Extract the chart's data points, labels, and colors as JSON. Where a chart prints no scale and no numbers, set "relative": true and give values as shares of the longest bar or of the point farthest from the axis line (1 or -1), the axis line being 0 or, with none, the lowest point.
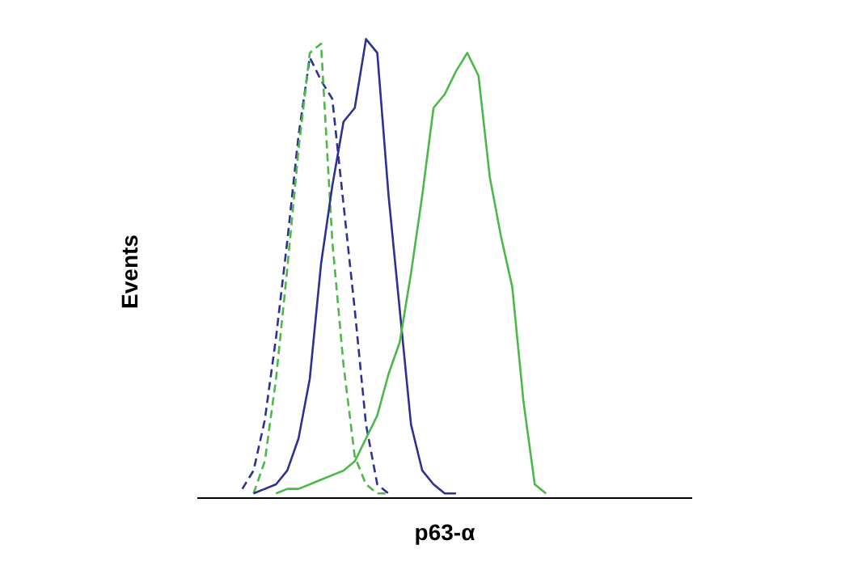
{
  "chart_data": {
    "type": "line",
    "xlabel": "p63-α",
    "ylabel": "Events",
    "relative": true,
    "marker": "none",
    "categories": [
      null,
      null,
      null,
      null,
      null,
      null,
      null,
      null,
      null,
      null,
      null,
      null,
      null,
      null,
      null,
      null,
      null,
      null,
      null,
      null,
      null,
      null,
      null,
      null,
      null,
      null,
      null,
      null,
      null,
      null,
      null,
      null,
      null,
      null,
      null,
      null,
      null,
      null,
      null,
      null,
      null,
      null,
      null,
      null,
      null
    ],
    "series": [
      {
        "color": "#2e3192",
        "line_style": "dashed",
        "values": [
          null,
          null,
          null,
          null,
          0.02,
          0.06,
          0.17,
          0.35,
          0.56,
          0.79,
          0.96,
          0.91,
          0.87,
          0.64,
          0.41,
          0.16,
          0.03,
          0.01,
          null,
          null,
          null,
          null,
          null,
          null,
          null,
          null,
          null,
          null,
          null,
          null,
          null,
          null,
          null,
          null,
          null,
          null,
          null,
          null,
          null,
          null,
          null,
          null,
          null,
          null,
          null
        ]
      },
      {
        "color": "#4cb848",
        "line_style": "dashed",
        "values": [
          null,
          null,
          null,
          null,
          null,
          0.01,
          0.08,
          0.26,
          0.5,
          0.76,
          0.97,
          0.99,
          0.56,
          0.29,
          0.09,
          0.03,
          0.01,
          0.01,
          null,
          null,
          null,
          null,
          null,
          null,
          null,
          null,
          null,
          null,
          null,
          null,
          null,
          null,
          null,
          null,
          null,
          null,
          null,
          null,
          null,
          null,
          null,
          null,
          null,
          null,
          null
        ]
      },
      {
        "color": "#2e3192",
        "line_style": "solid",
        "values": [
          null,
          null,
          null,
          null,
          null,
          0.01,
          0.02,
          0.03,
          0.06,
          0.13,
          0.26,
          0.51,
          0.68,
          0.82,
          0.85,
          1,
          0.97,
          0.66,
          0.41,
          0.16,
          0.06,
          0.03,
          0.01,
          0.01,
          null,
          null,
          null,
          null,
          null,
          null,
          null,
          null,
          null,
          null,
          null,
          null,
          null,
          null,
          null,
          null,
          null,
          null,
          null,
          null,
          null
        ]
      },
      {
        "color": "#4cb848",
        "line_style": "solid",
        "values": [
          null,
          null,
          null,
          null,
          null,
          null,
          null,
          0.01,
          0.02,
          0.02,
          0.03,
          0.04,
          0.05,
          0.06,
          0.08,
          0.13,
          0.18,
          0.27,
          0.34,
          0.49,
          0.66,
          0.85,
          0.88,
          0.93,
          0.97,
          0.92,
          0.7,
          0.57,
          0.46,
          0.21,
          0.03,
          0.01,
          null,
          null,
          null,
          null,
          null,
          null,
          null,
          null,
          null,
          null,
          null,
          null,
          null
        ]
      }
    ]
  }
}
